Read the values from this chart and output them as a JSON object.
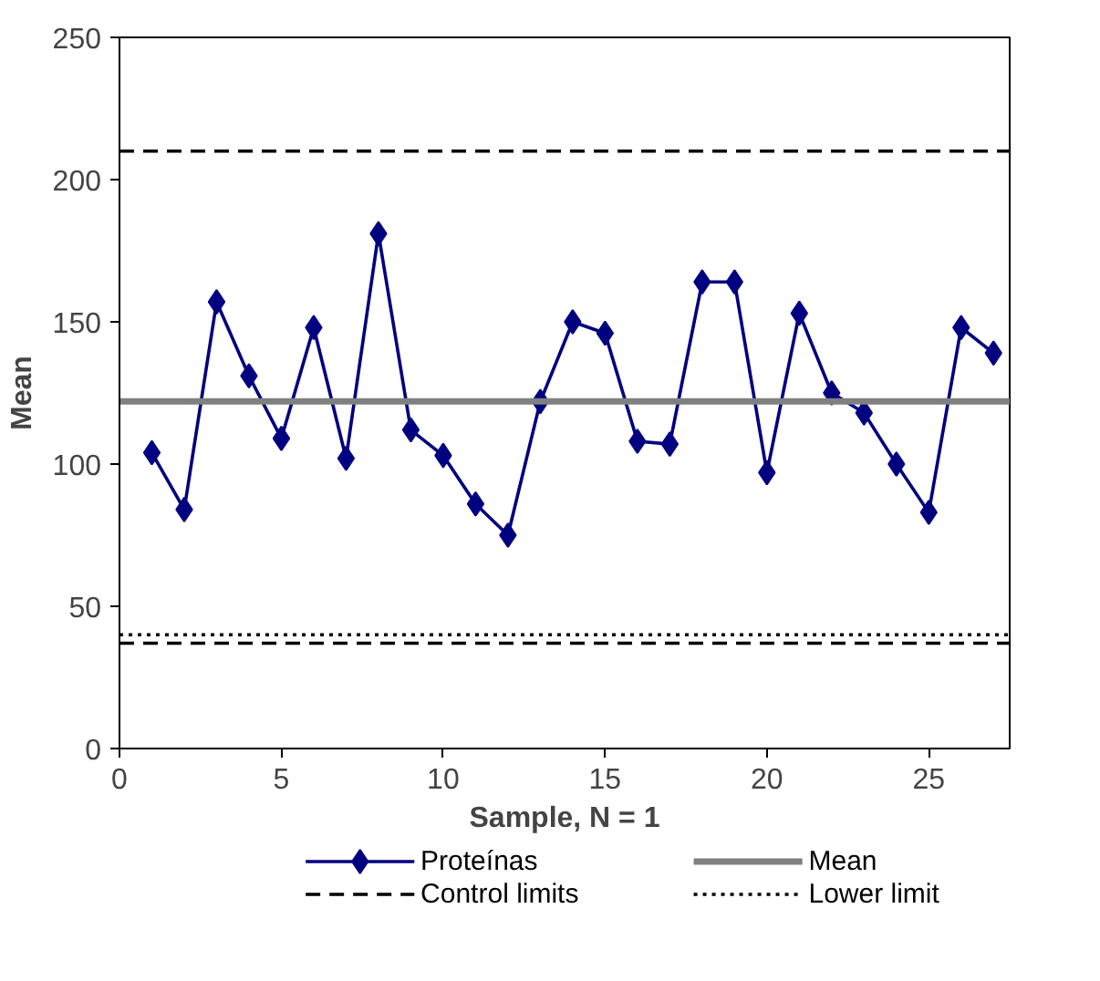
{
  "chart_data": {
    "type": "line",
    "xlabel": "Sample, N = 1",
    "ylabel": "Mean",
    "xlim": [
      0,
      27.5
    ],
    "xticks": [
      0,
      5,
      10,
      15,
      20,
      25
    ],
    "ylim": [
      0,
      250
    ],
    "yticks": [
      0,
      50,
      100,
      150,
      200,
      250
    ],
    "x": [
      1,
      2,
      3,
      4,
      5,
      6,
      7,
      8,
      9,
      10,
      11,
      12,
      13,
      14,
      15,
      16,
      17,
      18,
      19,
      20,
      21,
      22,
      23,
      24,
      25,
      26,
      27
    ],
    "series": [
      {
        "name": "Proteínas",
        "color": "#000080",
        "values": [
          104,
          84,
          157,
          131,
          109,
          148,
          102,
          181,
          112,
          103,
          86,
          75,
          122,
          150,
          146,
          108,
          107,
          164,
          164,
          97,
          153,
          125,
          118,
          100,
          83,
          148,
          139
        ]
      }
    ],
    "ref_lines": [
      {
        "axis": "y",
        "value": 122,
        "label": "Mean",
        "color": "#808080",
        "line_style": "solid"
      },
      {
        "axis": "y",
        "value": 210,
        "label": "Control limits",
        "color": "#000000",
        "line_style": "dashed"
      },
      {
        "axis": "y",
        "value": 37,
        "color": "#000000",
        "line_style": "dashed"
      },
      {
        "axis": "y",
        "value": 40,
        "label": "Lower limit",
        "color": "#000000",
        "line_style": "dotted"
      }
    ],
    "marker": "diamond",
    "line_style": "solid",
    "grid": false,
    "legend": "bottom"
  }
}
